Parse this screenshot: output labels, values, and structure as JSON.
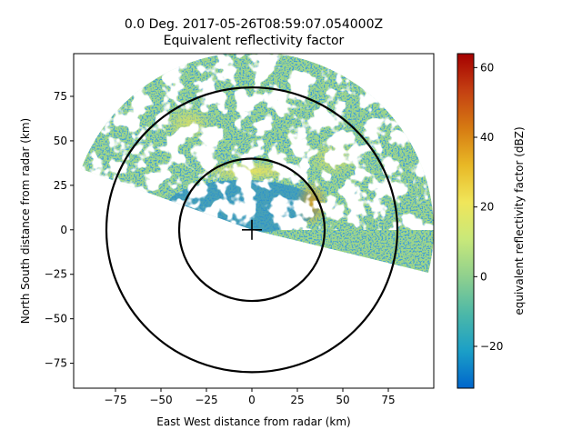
{
  "chart_data": {
    "type": "heatmap",
    "title_line1": "0.0 Deg. 2017-05-26T08:59:07.054000Z",
    "title_line2": "Equivalent reflectivity factor",
    "xlabel": "East West distance from radar (km)",
    "ylabel": "North South distance from radar (km)",
    "xlim": [
      -98,
      100
    ],
    "ylim": [
      -89,
      99
    ],
    "xticks": [
      -75,
      -50,
      -25,
      0,
      25,
      50,
      75
    ],
    "yticks": [
      -75,
      -50,
      -25,
      0,
      25,
      50,
      75
    ],
    "grid": false,
    "range_rings_km": [
      40,
      80
    ],
    "radar_marker": {
      "x": 0,
      "y": 0,
      "symbol": "+"
    },
    "data_coverage": {
      "shape": "sector",
      "azimuth_from_deg": -70,
      "azimuth_to_deg": 104,
      "max_range_km": 100
    },
    "colorbar": {
      "label": "equivalent reflectivity factor (dBZ)",
      "vmin": -32,
      "vmax": 64,
      "ticks": [
        -20,
        0,
        20,
        40,
        60
      ],
      "colors": [
        "#0066cc",
        "#1b9fc7",
        "#4cb8a8",
        "#8fd08e",
        "#c8e87a",
        "#f0e65a",
        "#e8b826",
        "#d67a12",
        "#c44012",
        "#a50000"
      ]
    },
    "features": [
      {
        "label": "weak echoes",
        "region": "north-west to north-east, 40-100 km"
      },
      {
        "label": "enhanced band",
        "region": "north, about 30 km"
      },
      {
        "label": "strong cell",
        "region": "east, about 30 km"
      }
    ]
  }
}
